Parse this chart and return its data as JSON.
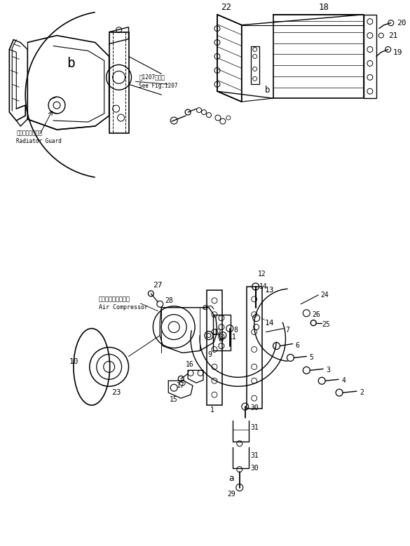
{
  "bg_color": "#ffffff",
  "line_color": "#000000",
  "fig_width": 5.85,
  "fig_height": 7.79,
  "dpi": 100,
  "labels": {
    "radiator_guard_jp": "ラジエータガード",
    "radiator_guard_en": "Radiator Guard",
    "air_compressor_jp": "エアーコンプレッサ",
    "air_compressor_en": "Air Compressor",
    "see_fig_jp": "ㄇ1207図参照",
    "see_fig_en": "See Fig.1207"
  }
}
